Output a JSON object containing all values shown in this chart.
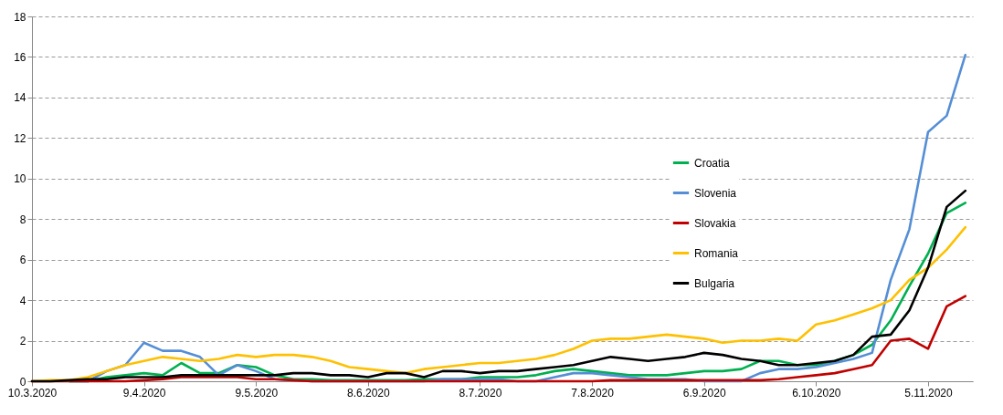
{
  "chart_data": {
    "type": "line",
    "x": [
      "2020-03-10",
      "2020-03-15",
      "2020-03-20",
      "2020-03-25",
      "2020-03-30",
      "2020-04-04",
      "2020-04-09",
      "2020-04-14",
      "2020-04-19",
      "2020-04-24",
      "2020-04-29",
      "2020-05-04",
      "2020-05-09",
      "2020-05-14",
      "2020-05-19",
      "2020-05-24",
      "2020-05-29",
      "2020-06-03",
      "2020-06-08",
      "2020-06-13",
      "2020-06-18",
      "2020-06-23",
      "2020-06-28",
      "2020-07-03",
      "2020-07-08",
      "2020-07-13",
      "2020-07-18",
      "2020-07-23",
      "2020-07-28",
      "2020-08-02",
      "2020-08-07",
      "2020-08-12",
      "2020-08-17",
      "2020-08-22",
      "2020-08-27",
      "2020-09-01",
      "2020-09-06",
      "2020-09-11",
      "2020-09-16",
      "2020-09-21",
      "2020-09-26",
      "2020-10-01",
      "2020-10-06",
      "2020-10-11",
      "2020-10-16",
      "2020-10-21",
      "2020-10-26",
      "2020-10-31",
      "2020-11-05",
      "2020-11-10",
      "2020-11-15"
    ],
    "series": [
      {
        "name": "Croatia",
        "color": "#00b050",
        "values": [
          null,
          null,
          0,
          0,
          0.2,
          0.3,
          0.4,
          0.3,
          0.9,
          0.4,
          0.4,
          0.8,
          0.7,
          0.3,
          0.1,
          0.1,
          0.05,
          0.05,
          0.05,
          0.05,
          0.05,
          0.1,
          0.1,
          0.1,
          0.2,
          0.2,
          0.2,
          0.3,
          0.5,
          0.6,
          0.5,
          0.4,
          0.3,
          0.3,
          0.3,
          0.4,
          0.5,
          0.5,
          0.6,
          1.0,
          1.0,
          0.8,
          0.8,
          1.0,
          1.3,
          1.8,
          3.0,
          4.7,
          6.3,
          8.3,
          8.8
        ]
      },
      {
        "name": "Slovenia",
        "color": "#558ed5",
        "values": [
          null,
          null,
          0,
          0,
          0.5,
          0.8,
          1.9,
          1.5,
          1.5,
          1.2,
          0.3,
          0.8,
          0.5,
          0.1,
          0.05,
          0,
          0,
          0,
          0,
          0,
          0,
          0,
          0.1,
          0.1,
          0.1,
          0.1,
          0,
          0,
          0.2,
          0.4,
          0.4,
          0.3,
          0.2,
          0.1,
          0.1,
          0.1,
          0,
          0,
          0,
          0.4,
          0.6,
          0.6,
          0.7,
          0.9,
          1.1,
          1.4,
          5.0,
          7.5,
          12.3,
          13.1,
          16.1
        ]
      },
      {
        "name": "Slovakia",
        "color": "#c00000",
        "values": [
          0,
          0,
          0,
          0,
          0,
          0,
          0.05,
          0.1,
          0.2,
          0.2,
          0.2,
          0.2,
          0.1,
          0.1,
          0.05,
          0,
          0,
          0,
          0,
          0,
          0,
          0,
          0,
          0,
          0,
          0,
          0,
          0,
          0,
          0,
          0,
          0.05,
          0.05,
          0.05,
          0.05,
          0.05,
          0.05,
          0.05,
          0.05,
          0.05,
          0.1,
          0.2,
          0.3,
          0.4,
          0.6,
          0.8,
          2.0,
          2.1,
          1.6,
          3.7,
          4.2
        ]
      },
      {
        "name": "Romania",
        "color": "#ffc000",
        "values": [
          0,
          0.05,
          0.05,
          0.2,
          0.5,
          0.8,
          1.0,
          1.2,
          1.1,
          1.0,
          1.1,
          1.3,
          1.2,
          1.3,
          1.3,
          1.2,
          1.0,
          0.7,
          0.6,
          0.5,
          0.4,
          0.6,
          0.7,
          0.8,
          0.9,
          0.9,
          1.0,
          1.1,
          1.3,
          1.6,
          2.0,
          2.1,
          2.1,
          2.2,
          2.3,
          2.2,
          2.1,
          1.9,
          2.0,
          2.0,
          2.1,
          2.0,
          2.8,
          3.0,
          3.3,
          3.6,
          4.0,
          5.0,
          5.6,
          6.5,
          7.6
        ]
      },
      {
        "name": "Bulgaria",
        "color": "#000000",
        "values": [
          0,
          0,
          0.05,
          0.1,
          0.1,
          0.2,
          0.2,
          0.2,
          0.3,
          0.3,
          0.3,
          0.3,
          0.3,
          0.3,
          0.4,
          0.4,
          0.3,
          0.3,
          0.2,
          0.4,
          0.4,
          0.2,
          0.5,
          0.5,
          0.4,
          0.5,
          0.5,
          0.6,
          0.7,
          0.8,
          1.0,
          1.2,
          1.1,
          1.0,
          1.1,
          1.2,
          1.4,
          1.3,
          1.1,
          1.0,
          0.8,
          0.8,
          0.9,
          1.0,
          1.3,
          2.2,
          2.3,
          3.5,
          5.6,
          8.6,
          9.4
        ]
      }
    ],
    "xlim": [
      "2020-03-10",
      "2020-11-17"
    ],
    "xticks": [
      {
        "value": "2020-03-10",
        "label": "10.3.2020"
      },
      {
        "value": "2020-04-09",
        "label": "9.4.2020"
      },
      {
        "value": "2020-05-09",
        "label": "9.5.2020"
      },
      {
        "value": "2020-06-08",
        "label": "8.6.2020"
      },
      {
        "value": "2020-07-08",
        "label": "8.7.2020"
      },
      {
        "value": "2020-08-07",
        "label": "7.8.2020"
      },
      {
        "value": "2020-09-06",
        "label": "6.9.2020"
      },
      {
        "value": "2020-10-06",
        "label": "6.10.2020"
      },
      {
        "value": "2020-11-05",
        "label": "5.11.2020"
      }
    ],
    "ylim": [
      0,
      18
    ],
    "yticks": [
      0,
      2,
      4,
      6,
      8,
      10,
      12,
      14,
      16,
      18
    ],
    "grid": "y",
    "legend": "right",
    "marker": "none",
    "line_style": "solid"
  }
}
